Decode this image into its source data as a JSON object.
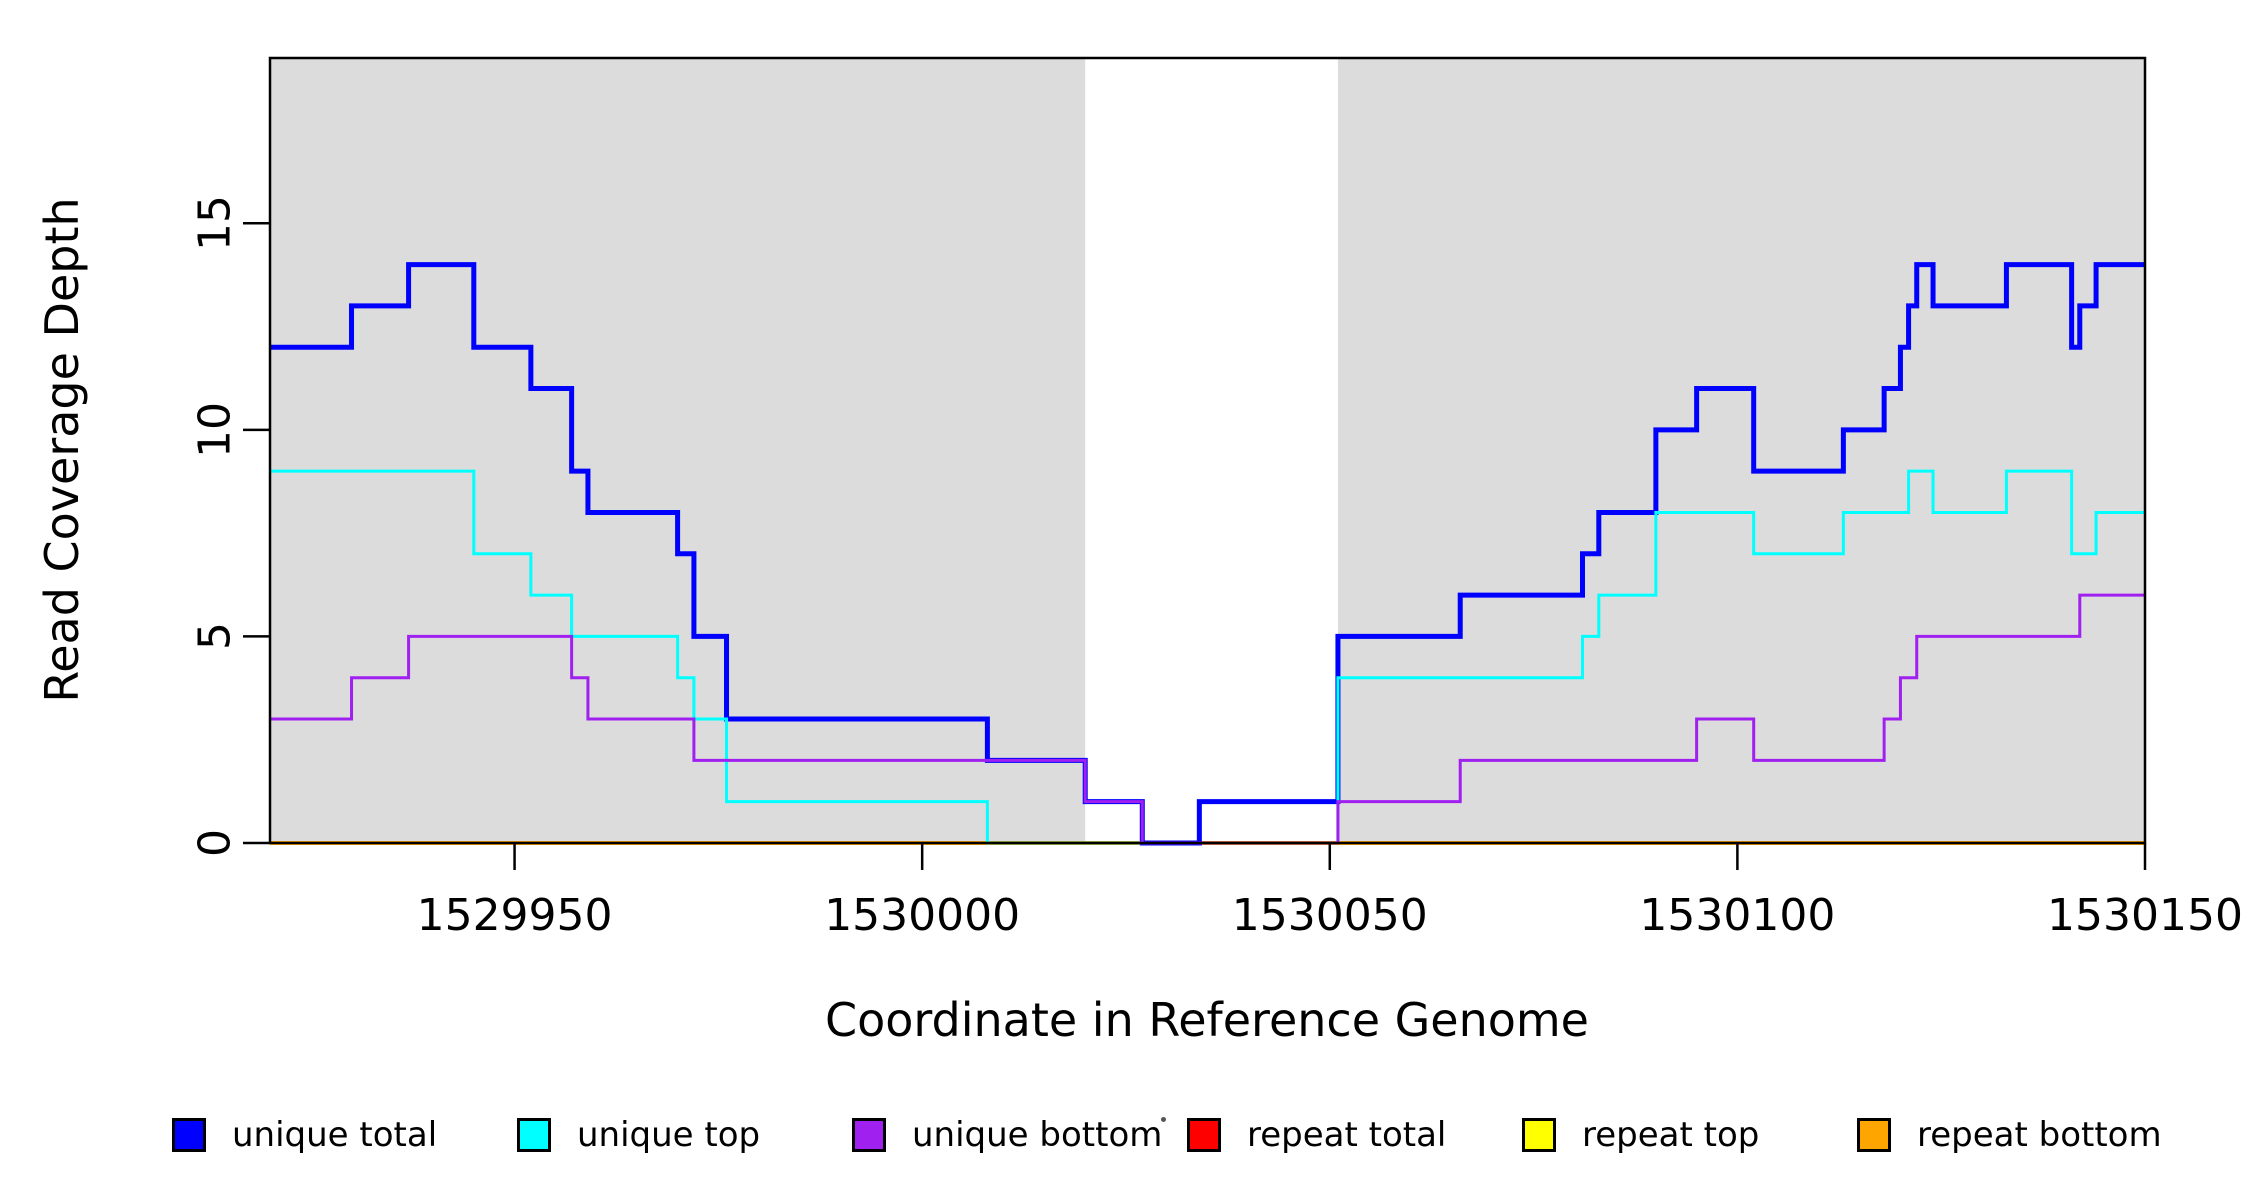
{
  "y_axis": {
    "title": "Read Coverage Depth",
    "ticks": [
      {
        "value": 0,
        "label": "0"
      },
      {
        "value": 5,
        "label": "5"
      },
      {
        "value": 10,
        "label": "10"
      },
      {
        "value": 15,
        "label": "15"
      }
    ]
  },
  "x_axis": {
    "title": "Coordinate in Reference Genome",
    "ticks": [
      {
        "value": 1529950,
        "label": "1529950"
      },
      {
        "value": 1530000,
        "label": "1530000"
      },
      {
        "value": 1530050,
        "label": "1530050"
      },
      {
        "value": 1530100,
        "label": "1530100"
      },
      {
        "value": 1530150,
        "label": "1530150"
      }
    ]
  },
  "legend": {
    "items": [
      {
        "label": "unique total",
        "color": "#0000FF"
      },
      {
        "label": "unique top",
        "color": "#00FFFF"
      },
      {
        "label": "unique bottom",
        "color": "#A020F0"
      },
      {
        "label": "repeat total",
        "color": "#FF0000"
      },
      {
        "label": "repeat top",
        "color": "#FFFF00"
      },
      {
        "label": "repeat bottom",
        "color": "#FFA500"
      }
    ]
  },
  "chart_data": {
    "type": "line",
    "subtype": "step",
    "title": "",
    "xlabel": "Coordinate in Reference Genome",
    "ylabel": "Read Coverage Depth",
    "xlim": [
      1529920,
      1530150
    ],
    "ylim": [
      0,
      19
    ],
    "grid": false,
    "legend_position": "bottom",
    "background_color": "#FFFFFF",
    "shaded_regions": [
      {
        "from": 1529920,
        "to": 1530020,
        "color": "#DCDCDC"
      },
      {
        "from": 1530051,
        "to": 1530150,
        "color": "#DCDCDC"
      }
    ],
    "series": [
      {
        "name": "repeat total",
        "color": "#FF0000",
        "width": 3,
        "steps": [
          [
            1529920,
            0
          ]
        ]
      },
      {
        "name": "repeat top",
        "color": "#FFFF00",
        "width": 3,
        "steps": [
          [
            1529920,
            0
          ]
        ]
      },
      {
        "name": "repeat bottom",
        "color": "#FFA500",
        "width": 4,
        "steps": [
          [
            1529920,
            0
          ]
        ]
      },
      {
        "name": "unique total",
        "color": "#0000FF",
        "width": 5,
        "steps": [
          [
            1529920,
            12
          ],
          [
            1529930,
            13
          ],
          [
            1529937,
            14
          ],
          [
            1529945,
            12
          ],
          [
            1529952,
            11
          ],
          [
            1529957,
            9
          ],
          [
            1529959,
            8
          ],
          [
            1529970,
            7
          ],
          [
            1529972,
            5
          ],
          [
            1529976,
            3
          ],
          [
            1530008,
            2
          ],
          [
            1530020,
            1
          ],
          [
            1530027,
            0
          ],
          [
            1530034,
            1
          ],
          [
            1530051,
            5
          ],
          [
            1530066,
            6
          ],
          [
            1530081,
            7
          ],
          [
            1530083,
            8
          ],
          [
            1530090,
            10
          ],
          [
            1530095,
            11
          ],
          [
            1530102,
            9
          ],
          [
            1530113,
            10
          ],
          [
            1530118,
            11
          ],
          [
            1530120,
            12
          ],
          [
            1530121,
            13
          ],
          [
            1530122,
            14
          ],
          [
            1530124,
            13
          ],
          [
            1530133,
            14
          ],
          [
            1530141,
            12
          ],
          [
            1530142,
            13
          ],
          [
            1530144,
            14
          ]
        ]
      },
      {
        "name": "unique top",
        "color": "#00FFFF",
        "width": 3,
        "steps": [
          [
            1529920,
            9
          ],
          [
            1529945,
            7
          ],
          [
            1529952,
            6
          ],
          [
            1529957,
            5
          ],
          [
            1529970,
            4
          ],
          [
            1529972,
            3
          ],
          [
            1529976,
            1
          ],
          [
            1530008,
            0
          ],
          [
            1530051,
            4
          ],
          [
            1530081,
            5
          ],
          [
            1530083,
            6
          ],
          [
            1530090,
            8
          ],
          [
            1530102,
            7
          ],
          [
            1530113,
            8
          ],
          [
            1530121,
            9
          ],
          [
            1530124,
            8
          ],
          [
            1530133,
            9
          ],
          [
            1530141,
            7
          ],
          [
            1530144,
            8
          ]
        ]
      },
      {
        "name": "unique bottom",
        "color": "#A020F0",
        "width": 3,
        "steps": [
          [
            1529920,
            3
          ],
          [
            1529930,
            4
          ],
          [
            1529937,
            5
          ],
          [
            1529957,
            4
          ],
          [
            1529959,
            3
          ],
          [
            1529972,
            2
          ],
          [
            1530020,
            1
          ],
          [
            1530027,
            0
          ],
          [
            1530051,
            1
          ],
          [
            1530066,
            2
          ],
          [
            1530095,
            3
          ],
          [
            1530102,
            2
          ],
          [
            1530118,
            3
          ],
          [
            1530120,
            4
          ],
          [
            1530122,
            5
          ],
          [
            1530142,
            6
          ]
        ]
      }
    ]
  }
}
